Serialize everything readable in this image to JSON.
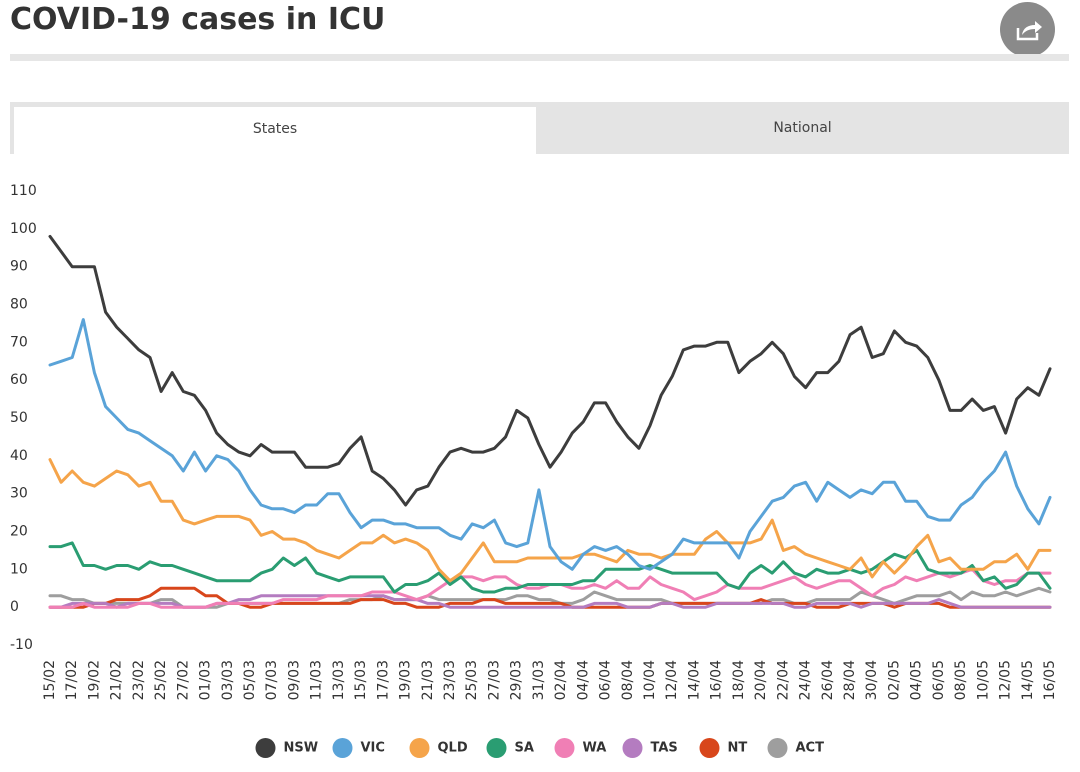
{
  "header": {
    "title": "COVID-19 cases in ICU"
  },
  "tabs": [
    "States",
    "National"
  ],
  "chart_data": {
    "type": "line",
    "categories": [
      "15/02",
      null,
      "17/02",
      null,
      "19/02",
      null,
      "21/02",
      null,
      "23/02",
      null,
      "25/02",
      null,
      "27/02",
      null,
      "01/03",
      null,
      "03/03",
      null,
      "05/03",
      null,
      "07/03",
      null,
      "09/03",
      null,
      "11/03",
      null,
      "13/03",
      null,
      "15/03",
      null,
      "17/03",
      null,
      "19/03",
      null,
      "21/03",
      null,
      "23/03",
      null,
      "25/03",
      null,
      "27/03",
      null,
      "29/03",
      null,
      "31/03",
      null,
      "02/04",
      null,
      "04/04",
      null,
      "06/04",
      null,
      "08/04",
      null,
      "10/04",
      null,
      "12/04",
      null,
      "14/04",
      null,
      "16/04",
      null,
      "18/04",
      null,
      "20/04",
      null,
      "22/04",
      null,
      "24/04",
      null,
      "26/04",
      null,
      "28/04",
      null,
      "30/04",
      null,
      "02/05",
      null,
      "04/05",
      null,
      "06/05",
      null,
      "08/05",
      null,
      "10/05",
      null,
      "12/05",
      null,
      "14/05",
      null,
      "16/05"
    ],
    "ylim": [
      -10,
      110
    ],
    "yticks": [
      -10,
      0,
      10,
      20,
      30,
      40,
      50,
      60,
      70,
      80,
      90,
      100,
      110
    ],
    "grid": false,
    "legend": "bottom",
    "series": [
      {
        "name": "NSW",
        "color": "#3d3d3d",
        "values": [
          98,
          94,
          90,
          90,
          90,
          78,
          74,
          71,
          68,
          66,
          57,
          62,
          57,
          56,
          52,
          46,
          43,
          41,
          40,
          43,
          41,
          41,
          41,
          37,
          37,
          37,
          38,
          42,
          45,
          36,
          34,
          31,
          27,
          31,
          32,
          37,
          41,
          42,
          41,
          41,
          42,
          45,
          52,
          50,
          43,
          37,
          41,
          46,
          49,
          54,
          54,
          49,
          45,
          42,
          48,
          56,
          61,
          68,
          69,
          69,
          70,
          70,
          62,
          65,
          67,
          70,
          67,
          61,
          58,
          62,
          62,
          65,
          72,
          74,
          66,
          67,
          73,
          70,
          69,
          66,
          60,
          52,
          52,
          55,
          52,
          53,
          46,
          55,
          58,
          56,
          63
        ]
      },
      {
        "name": "VIC",
        "color": "#5aa3d8",
        "values": [
          64,
          65,
          66,
          76,
          62,
          53,
          50,
          47,
          46,
          44,
          42,
          40,
          36,
          41,
          36,
          40,
          39,
          36,
          31,
          27,
          26,
          26,
          25,
          27,
          27,
          30,
          30,
          25,
          21,
          23,
          23,
          22,
          22,
          21,
          21,
          21,
          19,
          18,
          22,
          21,
          23,
          17,
          16,
          17,
          31,
          16,
          12,
          10,
          14,
          16,
          15,
          16,
          14,
          11,
          10,
          12,
          14,
          18,
          17,
          17,
          17,
          17,
          13,
          20,
          24,
          28,
          29,
          32,
          33,
          28,
          33,
          31,
          29,
          31,
          30,
          33,
          33,
          28,
          28,
          24,
          23,
          23,
          27,
          29,
          33,
          36,
          41,
          32,
          26,
          22,
          29
        ]
      },
      {
        "name": "QLD",
        "color": "#f5a44a",
        "values": [
          39,
          33,
          36,
          33,
          32,
          34,
          36,
          35,
          32,
          33,
          28,
          28,
          23,
          22,
          23,
          24,
          24,
          24,
          23,
          19,
          20,
          18,
          18,
          17,
          15,
          14,
          13,
          15,
          17,
          17,
          19,
          17,
          18,
          17,
          15,
          10,
          7,
          9,
          13,
          17,
          12,
          12,
          12,
          13,
          13,
          13,
          13,
          13,
          14,
          14,
          13,
          12,
          15,
          14,
          14,
          13,
          14,
          14,
          14,
          18,
          20,
          17,
          17,
          17,
          18,
          23,
          15,
          16,
          14,
          13,
          12,
          11,
          10,
          13,
          8,
          12,
          9,
          12,
          16,
          19,
          12,
          13,
          10,
          10,
          10,
          12,
          12,
          14,
          10,
          15,
          15
        ]
      },
      {
        "name": "SA",
        "color": "#2a9d72",
        "values": [
          16,
          16,
          17,
          11,
          11,
          10,
          11,
          11,
          10,
          12,
          11,
          11,
          10,
          9,
          8,
          7,
          7,
          7,
          7,
          9,
          10,
          13,
          11,
          13,
          9,
          8,
          7,
          8,
          8,
          8,
          8,
          4,
          6,
          6,
          7,
          9,
          6,
          8,
          5,
          4,
          4,
          5,
          5,
          6,
          6,
          6,
          6,
          6,
          7,
          7,
          10,
          10,
          10,
          10,
          11,
          10,
          9,
          9,
          9,
          9,
          9,
          6,
          5,
          9,
          11,
          9,
          12,
          9,
          8,
          10,
          9,
          9,
          10,
          9,
          10,
          12,
          14,
          13,
          15,
          10,
          9,
          9,
          9,
          11,
          7,
          8,
          5,
          6,
          9,
          9,
          5
        ]
      },
      {
        "name": "WA",
        "color": "#f07fb5",
        "values": [
          0,
          0,
          0,
          1,
          0,
          0,
          0,
          0,
          1,
          1,
          0,
          0,
          0,
          0,
          0,
          1,
          1,
          1,
          1,
          1,
          1,
          2,
          2,
          2,
          2,
          3,
          3,
          3,
          3,
          4,
          4,
          4,
          3,
          2,
          3,
          5,
          7,
          8,
          8,
          7,
          8,
          8,
          6,
          5,
          5,
          6,
          6,
          5,
          5,
          6,
          5,
          7,
          5,
          5,
          8,
          6,
          5,
          4,
          2,
          3,
          4,
          6,
          5,
          5,
          5,
          6,
          7,
          8,
          6,
          5,
          6,
          7,
          7,
          5,
          3,
          5,
          6,
          8,
          7,
          8,
          9,
          8,
          9,
          10,
          7,
          6,
          7,
          7,
          9,
          9,
          9
        ]
      },
      {
        "name": "TAS",
        "color": "#b47cc0",
        "values": [
          0,
          0,
          1,
          1,
          1,
          1,
          0,
          1,
          1,
          1,
          1,
          1,
          0,
          0,
          0,
          1,
          1,
          2,
          2,
          3,
          3,
          3,
          3,
          3,
          3,
          3,
          3,
          3,
          3,
          3,
          3,
          2,
          2,
          2,
          1,
          1,
          0,
          0,
          0,
          0,
          0,
          0,
          0,
          0,
          0,
          0,
          0,
          0,
          0,
          1,
          1,
          1,
          0,
          0,
          0,
          1,
          1,
          0,
          0,
          0,
          1,
          1,
          1,
          1,
          1,
          1,
          1,
          0,
          0,
          1,
          1,
          1,
          1,
          0,
          1,
          1,
          1,
          1,
          1,
          1,
          2,
          1,
          0,
          0,
          0,
          0,
          0,
          0,
          0,
          0,
          0
        ]
      },
      {
        "name": "NT",
        "color": "#d8461b",
        "values": [
          0,
          0,
          0,
          0,
          1,
          1,
          2,
          2,
          2,
          3,
          5,
          5,
          5,
          5,
          3,
          3,
          1,
          1,
          0,
          0,
          1,
          1,
          1,
          1,
          1,
          1,
          1,
          1,
          2,
          2,
          2,
          1,
          1,
          0,
          0,
          0,
          1,
          1,
          1,
          2,
          2,
          1,
          1,
          1,
          1,
          1,
          1,
          0,
          0,
          0,
          0,
          0,
          0,
          0,
          0,
          1,
          1,
          1,
          1,
          1,
          1,
          1,
          1,
          1,
          2,
          1,
          1,
          1,
          1,
          0,
          0,
          0,
          1,
          1,
          1,
          1,
          0,
          1,
          1,
          1,
          1,
          0,
          0,
          0,
          0,
          0,
          0,
          0,
          0,
          0,
          0
        ]
      },
      {
        "name": "ACT",
        "color": "#9e9e9e",
        "values": [
          3,
          3,
          2,
          2,
          1,
          1,
          1,
          1,
          1,
          1,
          2,
          2,
          0,
          0,
          0,
          0,
          1,
          1,
          1,
          1,
          1,
          1,
          1,
          1,
          1,
          1,
          1,
          2,
          2,
          2,
          3,
          2,
          2,
          2,
          3,
          2,
          2,
          2,
          2,
          2,
          2,
          2,
          3,
          3,
          2,
          2,
          1,
          1,
          2,
          4,
          3,
          2,
          2,
          2,
          2,
          2,
          1,
          1,
          1,
          1,
          1,
          1,
          1,
          1,
          1,
          2,
          2,
          1,
          1,
          2,
          2,
          2,
          2,
          4,
          3,
          2,
          1,
          2,
          3,
          3,
          3,
          4,
          2,
          4,
          3,
          3,
          4,
          3,
          4,
          5,
          4
        ]
      }
    ]
  }
}
